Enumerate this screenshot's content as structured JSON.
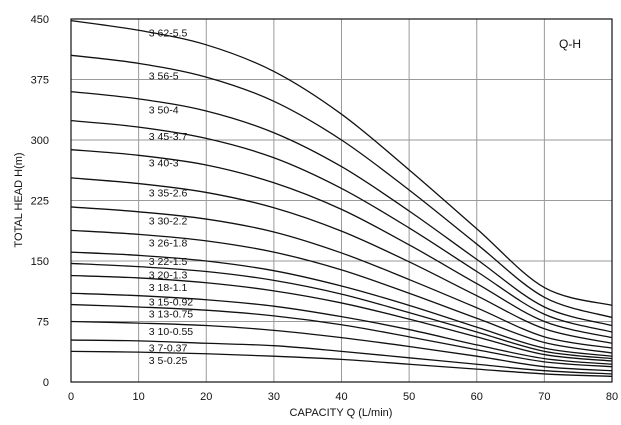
{
  "chart_data": {
    "type": "line",
    "tag": "Q-H",
    "xlabel": "CAPACITY  Q (L/min)",
    "ylabel": "TOTAL HEAD  H(m)",
    "xlim": [
      0,
      80
    ],
    "ylim": [
      0,
      450
    ],
    "x_ticks": [
      "0",
      "10",
      "20",
      "30",
      "40",
      "50",
      "60",
      "70",
      "80"
    ],
    "y_ticks": [
      "0",
      "75",
      "150",
      "225",
      "300",
      "375",
      "450"
    ],
    "grid": true,
    "x": [
      0,
      10,
      20,
      30,
      40,
      50,
      60,
      70,
      80
    ],
    "series": [
      {
        "name": "3 62-5.5",
        "label_x": 11.5,
        "label_y": 433,
        "values": [
          448,
          436,
          418,
          385,
          332,
          263,
          190,
          117,
          95
        ]
      },
      {
        "name": "3 56-5",
        "label_x": 11.5,
        "label_y": 380,
        "values": [
          405,
          395,
          378,
          348,
          300,
          238,
          171,
          105,
          80
        ]
      },
      {
        "name": "3 50-4",
        "label_x": 11.5,
        "label_y": 338,
        "values": [
          360,
          351,
          336,
          309,
          267,
          212,
          152,
          93,
          70
        ]
      },
      {
        "name": "3 45-3.7",
        "label_x": 11.5,
        "label_y": 305,
        "values": [
          324,
          316,
          302,
          278,
          240,
          191,
          137,
          84,
          62
        ]
      },
      {
        "name": "3 40-3",
        "label_x": 11.5,
        "label_y": 272,
        "values": [
          288,
          281,
          269,
          247,
          214,
          170,
          122,
          75,
          55
        ]
      },
      {
        "name": "3 35-2.6",
        "label_x": 11.5,
        "label_y": 235,
        "values": [
          253,
          246,
          235,
          216,
          187,
          149,
          107,
          66,
          48
        ]
      },
      {
        "name": "3 30-2.2",
        "label_x": 11.5,
        "label_y": 200,
        "values": [
          217,
          211,
          202,
          186,
          160,
          127,
          92,
          56,
          42
        ]
      },
      {
        "name": "3 26-1.8",
        "label_x": 11.5,
        "label_y": 173,
        "values": [
          188,
          183,
          175,
          161,
          139,
          110,
          79,
          49,
          36
        ]
      },
      {
        "name": "3 22-1.5",
        "label_x": 11.5,
        "label_y": 150,
        "values": [
          161,
          157,
          150,
          138,
          119,
          95,
          68,
          42,
          32
        ]
      },
      {
        "name": "3 20-1.3",
        "label_x": 11.5,
        "label_y": 133,
        "values": [
          147,
          143,
          137,
          126,
          109,
          86,
          62,
          38,
          29
        ]
      },
      {
        "name": "3 18-1.1",
        "label_x": 11.5,
        "label_y": 118,
        "values": [
          132,
          129,
          123,
          113,
          98,
          78,
          56,
          34,
          26
        ]
      },
      {
        "name": "3 15-0.92",
        "label_x": 11.5,
        "label_y": 100,
        "values": [
          110,
          107,
          102,
          94,
          81,
          65,
          46,
          29,
          22
        ]
      },
      {
        "name": "3 13-0.75",
        "label_x": 11.5,
        "label_y": 85,
        "values": [
          96,
          93,
          89,
          82,
          71,
          56,
          40,
          25,
          19
        ]
      },
      {
        "name": "3 10-0.55",
        "label_x": 11.5,
        "label_y": 63,
        "values": [
          75,
          73,
          70,
          64,
          55,
          44,
          32,
          19,
          14
        ]
      },
      {
        "name": "3 7-0.37",
        "label_x": 11.5,
        "label_y": 43,
        "values": [
          52,
          51,
          48,
          45,
          38,
          30,
          22,
          14,
          10
        ]
      },
      {
        "name": "3 5-0.25",
        "label_x": 11.5,
        "label_y": 27,
        "values": [
          38,
          37,
          35,
          32,
          28,
          22,
          16,
          10,
          7
        ]
      }
    ]
  }
}
